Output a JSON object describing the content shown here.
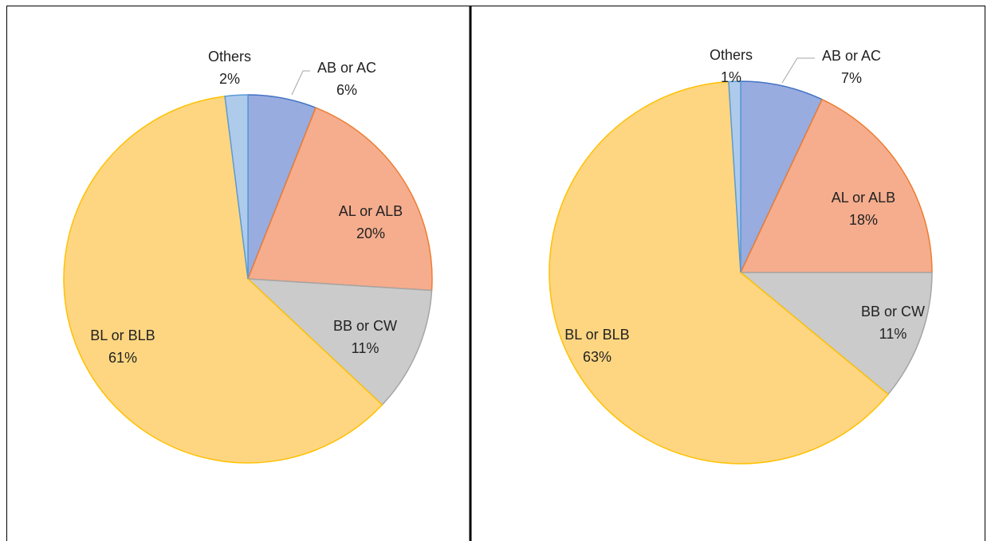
{
  "chart_data": [
    {
      "type": "pie",
      "categories": [
        "AB or AC",
        "AL or ALB",
        "BB or CW",
        "BL or BLB",
        "Others"
      ],
      "values": [
        6,
        20,
        11,
        61,
        2
      ],
      "value_labels": [
        "6%",
        "20%",
        "11%",
        "61%",
        "2%"
      ],
      "colors": [
        "#98acdf",
        "#f5ad8e",
        "#cbcbcb",
        "#fed681",
        "#aecbec"
      ]
    },
    {
      "type": "pie",
      "categories": [
        "AB or AC",
        "AL or ALB",
        "BB or CW",
        "BL or BLB",
        "Others"
      ],
      "values": [
        7,
        18,
        11,
        63,
        1
      ],
      "value_labels": [
        "7%",
        "18%",
        "11%",
        "63%",
        "1%"
      ],
      "colors": [
        "#98acdf",
        "#f5ad8e",
        "#cbcbcb",
        "#fed681",
        "#aecbec"
      ]
    }
  ]
}
